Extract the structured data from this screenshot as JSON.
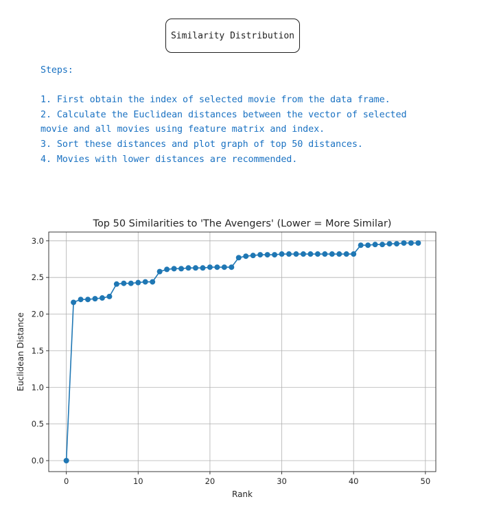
{
  "header": {
    "title": "Similarity Distribution"
  },
  "steps": {
    "heading": "Steps:",
    "lines": [
      "1. First obtain the index of selected movie from the data frame.",
      "2. Calculate the Euclidean distances between the vector of selected",
      "movie and all movies using feature matrix and index.",
      "3. Sort these distances and plot graph of top 50 distances.",
      "4. Movies with lower distances are recommended."
    ]
  },
  "chart_data": {
    "type": "line",
    "title": "Top 50 Similarities to 'The Avengers' (Lower = More Similar)",
    "xlabel": "Rank",
    "ylabel": "Euclidean Distance",
    "xlim": [
      -2.45,
      51.45
    ],
    "ylim": [
      -0.15,
      3.12
    ],
    "xticks": [
      0,
      10,
      20,
      30,
      40,
      50
    ],
    "yticks": [
      0.0,
      0.5,
      1.0,
      1.5,
      2.0,
      2.5,
      3.0
    ],
    "ytick_labels": [
      "0.0",
      "0.5",
      "1.0",
      "1.5",
      "2.0",
      "2.5",
      "3.0"
    ],
    "grid": true,
    "marker": "circle",
    "color": "#1f77b4",
    "x": [
      0,
      1,
      2,
      3,
      4,
      5,
      6,
      7,
      8,
      9,
      10,
      11,
      12,
      13,
      14,
      15,
      16,
      17,
      18,
      19,
      20,
      21,
      22,
      23,
      24,
      25,
      26,
      27,
      28,
      29,
      30,
      31,
      32,
      33,
      34,
      35,
      36,
      37,
      38,
      39,
      40,
      41,
      42,
      43,
      44,
      45,
      46,
      47,
      48,
      49
    ],
    "y": [
      0.0,
      2.16,
      2.2,
      2.2,
      2.21,
      2.22,
      2.24,
      2.41,
      2.42,
      2.42,
      2.43,
      2.44,
      2.44,
      2.58,
      2.61,
      2.62,
      2.62,
      2.63,
      2.63,
      2.63,
      2.64,
      2.64,
      2.64,
      2.64,
      2.77,
      2.79,
      2.8,
      2.81,
      2.81,
      2.81,
      2.82,
      2.82,
      2.82,
      2.82,
      2.82,
      2.82,
      2.82,
      2.82,
      2.82,
      2.82,
      2.82,
      2.94,
      2.94,
      2.95,
      2.95,
      2.96,
      2.96,
      2.97,
      2.97,
      2.97
    ]
  }
}
